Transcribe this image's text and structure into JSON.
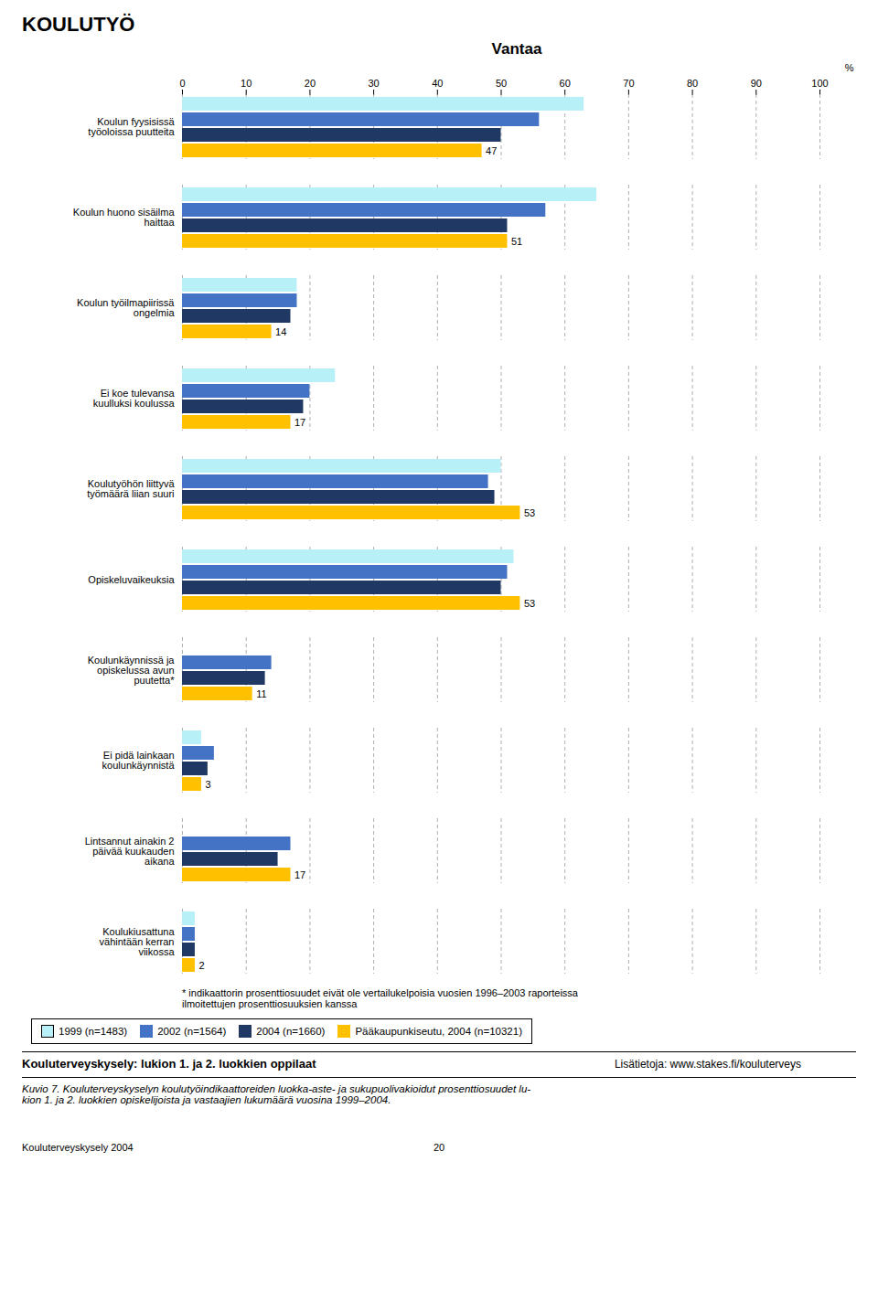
{
  "chart_data": {
    "type": "bar",
    "orientation": "horizontal",
    "header": "KOULUTYÖ",
    "title": "Vantaa",
    "categories": [
      "Koulun fyysisissä\ntyöoloissa puutteita",
      "Koulun huono sisäilma\nhaittaa",
      "Koulun työilmapiirissä\nongelmia",
      "Ei koe tulevansa\nkuulluksi koulussa",
      "Koulutyöhön liittyvä\ntyömäärä liian suuri",
      "Opiskeluvaikeuksia",
      "Koulunkäynnissä ja\nopiskelussa avun\npuutetta*",
      "Ei pidä lainkaan\nkoulunkäynnistä",
      "Lintsannut ainakin 2\npäivää kuukauden\naikana",
      "Koulukiusattuna\nvähintään kerran\nviikossa"
    ],
    "series": [
      {
        "name": "1999 (n=1483)",
        "color": "#b8f0f8",
        "values": [
          63,
          65,
          18,
          24,
          50,
          52,
          0,
          3,
          0,
          2
        ]
      },
      {
        "name": "2002 (n=1564)",
        "color": "#4472c4",
        "values": [
          56,
          57,
          18,
          20,
          48,
          51,
          14,
          5,
          17,
          2
        ]
      },
      {
        "name": "2004 (n=1660)",
        "color": "#1f3864",
        "values": [
          50,
          51,
          17,
          19,
          49,
          50,
          13,
          4,
          15,
          2
        ]
      },
      {
        "name": "Pääkaupunkiseutu, 2004 (n=10321)",
        "color": "#ffc000",
        "values": [
          47,
          51,
          14,
          17,
          53,
          53,
          11,
          3,
          17,
          2
        ],
        "data_labels": true
      }
    ],
    "xlabel": "%",
    "xlim": [
      0,
      100
    ],
    "xticks": [
      0,
      10,
      20,
      30,
      40,
      50,
      60,
      70,
      80,
      90,
      100
    ],
    "grid": true,
    "legend": "bottom",
    "footnote": "* indikaattorin prosenttiosuudet eivät ole vertailukelpoisia vuosien 1996–2003 raporteissa\nilmoitettujen prosenttiosuuksien kanssa",
    "bottom_label1": "Kouluterveyskysely: lukion 1. ja 2. luokkien oppilaat",
    "bottom_label2": "Lisätietoja: www.stakes.fi/kouluterveys",
    "caption": "Kuvio 7. Kouluterveyskyselyn koulutyöindikaattoreiden luokka-aste- ja sukupuolivakioidut prosenttiosuudet lu-\nkion 1. ja 2. luokkien opiskelijoista ja vastaajien lukumäärä vuosina 1999–2004.",
    "page_label": "Kouluterveyskysely 2004",
    "page_number": "20"
  }
}
